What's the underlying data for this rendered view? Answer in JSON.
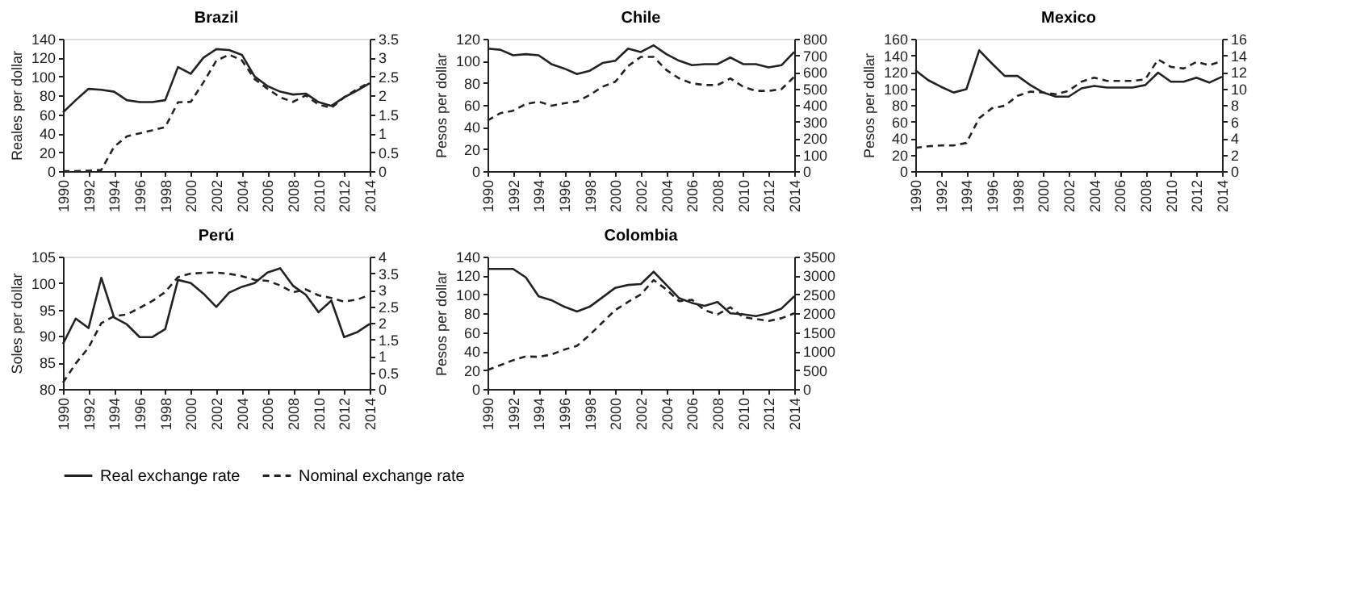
{
  "chart_data": [
    {
      "type": "line",
      "title": "Brazil",
      "ylabel": "Reales per dollar",
      "x": [
        1990,
        1991,
        1992,
        1993,
        1994,
        1995,
        1996,
        1997,
        1998,
        1999,
        2000,
        2001,
        2002,
        2003,
        2004,
        2005,
        2006,
        2007,
        2008,
        2009,
        2010,
        2011,
        2012,
        2013,
        2014
      ],
      "xlim": [
        1990,
        2014
      ],
      "xticks": [
        1990,
        1992,
        1994,
        1996,
        1998,
        2000,
        2002,
        2004,
        2006,
        2008,
        2010,
        2012,
        2014
      ],
      "ylim": [
        0,
        140
      ],
      "yticks": [
        0,
        20,
        40,
        60,
        80,
        100,
        120,
        140
      ],
      "y2lim": [
        0,
        3.5
      ],
      "y2ticks": [
        0,
        0.5,
        1,
        1.5,
        2,
        2.5,
        3,
        3.5
      ],
      "series": [
        {
          "color": "#222222",
          "line_style": "solid",
          "values": [
            62,
            75,
            87,
            86,
            84,
            75,
            73,
            73,
            75,
            110,
            103,
            120,
            129,
            128,
            123,
            100,
            90,
            84,
            81,
            82,
            73,
            69,
            78,
            85,
            93
          ]
        },
        {
          "color": "#222222",
          "line_style": "dashed",
          "axis": "y2",
          "values": [
            0,
            0,
            0.01,
            0.03,
            0.64,
            0.92,
            1.0,
            1.08,
            1.16,
            1.82,
            1.83,
            2.35,
            2.92,
            3.08,
            2.93,
            2.43,
            2.18,
            1.95,
            1.83,
            2.0,
            1.76,
            1.67,
            1.95,
            2.16,
            2.35
          ]
        }
      ]
    },
    {
      "type": "line",
      "title": "Chile",
      "ylabel": "Pesos per dollar",
      "x": [
        1990,
        1991,
        1992,
        1993,
        1994,
        1995,
        1996,
        1997,
        1998,
        1999,
        2000,
        2001,
        2002,
        2003,
        2004,
        2005,
        2006,
        2007,
        2008,
        2009,
        2010,
        2011,
        2012,
        2013,
        2014
      ],
      "xlim": [
        1990,
        2014
      ],
      "xticks": [
        1990,
        1992,
        1994,
        1996,
        1998,
        2000,
        2002,
        2004,
        2006,
        2008,
        2010,
        2012,
        2014
      ],
      "ylim": [
        0,
        120
      ],
      "yticks": [
        0,
        20,
        40,
        60,
        80,
        100,
        120
      ],
      "y2lim": [
        0,
        800
      ],
      "y2ticks": [
        0,
        100,
        200,
        300,
        400,
        500,
        600,
        700,
        800
      ],
      "series": [
        {
          "color": "#222222",
          "line_style": "solid",
          "values": [
            111,
            110,
            105,
            106,
            105,
            97,
            93,
            88,
            91,
            98,
            100,
            111,
            108,
            114,
            106,
            100,
            96,
            97,
            97,
            103,
            97,
            97,
            94,
            96,
            108
          ]
        },
        {
          "color": "#222222",
          "line_style": "dashed",
          "axis": "y2",
          "values": [
            305,
            350,
            365,
            405,
            420,
            395,
            410,
            420,
            460,
            510,
            540,
            635,
            690,
            690,
            610,
            560,
            530,
            520,
            520,
            560,
            510,
            485,
            485,
            495,
            570
          ]
        }
      ]
    },
    {
      "type": "line",
      "title": "Mexico",
      "ylabel": "Pesos per dollar",
      "x": [
        1990,
        1991,
        1992,
        1993,
        1994,
        1995,
        1996,
        1997,
        1998,
        1999,
        2000,
        2001,
        2002,
        2003,
        2004,
        2005,
        2006,
        2007,
        2008,
        2009,
        2010,
        2011,
        2012,
        2013,
        2014
      ],
      "xlim": [
        1990,
        2014
      ],
      "xticks": [
        1990,
        1992,
        1994,
        1996,
        1998,
        2000,
        2002,
        2004,
        2006,
        2008,
        2010,
        2012,
        2014
      ],
      "ylim": [
        0,
        160
      ],
      "yticks": [
        0,
        20,
        40,
        60,
        80,
        100,
        120,
        140,
        160
      ],
      "y2lim": [
        0,
        16
      ],
      "y2ticks": [
        0,
        2,
        4,
        6,
        8,
        10,
        12,
        14,
        16
      ],
      "series": [
        {
          "color": "#222222",
          "line_style": "solid",
          "values": [
            122,
            110,
            102,
            95,
            99,
            146,
            130,
            115,
            115,
            104,
            95,
            90,
            90,
            100,
            103,
            101,
            101,
            101,
            104,
            119,
            108,
            108,
            113,
            107,
            114
          ]
        },
        {
          "color": "#222222",
          "line_style": "dashed",
          "axis": "y2",
          "values": [
            2.8,
            3.0,
            3.1,
            3.1,
            3.4,
            6.4,
            7.6,
            7.9,
            9.1,
            9.6,
            9.5,
            9.3,
            9.7,
            10.8,
            11.3,
            10.9,
            10.9,
            10.9,
            11.1,
            13.5,
            12.6,
            12.4,
            13.2,
            12.8,
            13.3
          ]
        }
      ]
    },
    {
      "type": "line",
      "title": "Perú",
      "ylabel": "Soles per dollar",
      "x": [
        1990,
        1991,
        1992,
        1993,
        1994,
        1995,
        1996,
        1997,
        1998,
        1999,
        2000,
        2001,
        2002,
        2003,
        2004,
        2005,
        2006,
        2007,
        2008,
        2009,
        2010,
        2011,
        2012,
        2013,
        2014
      ],
      "xlim": [
        1990,
        2014
      ],
      "xticks": [
        1990,
        1992,
        1994,
        1996,
        1998,
        2000,
        2002,
        2004,
        2006,
        2008,
        2010,
        2012,
        2014
      ],
      "ylim": [
        80,
        105
      ],
      "yticks": [
        80,
        85,
        90,
        95,
        100,
        105
      ],
      "y2lim": [
        0,
        4
      ],
      "y2ticks": [
        0,
        0.5,
        1,
        1.5,
        2,
        2.5,
        3,
        3.5,
        4
      ],
      "series": [
        {
          "color": "#222222",
          "line_style": "solid",
          "values": [
            88.5,
            93.3,
            91.5,
            101,
            93.5,
            92.2,
            89.8,
            89.8,
            91.3,
            100.6,
            100,
            98,
            95.5,
            98.2,
            99.3,
            100,
            102,
            102.8,
            99.5,
            97.8,
            94.5,
            96.7,
            89.8,
            90.7,
            92.3
          ]
        },
        {
          "color": "#222222",
          "line_style": "dashed",
          "axis": "y2",
          "values": [
            0.19,
            0.77,
            1.25,
            1.99,
            2.2,
            2.25,
            2.45,
            2.66,
            2.93,
            3.38,
            3.49,
            3.51,
            3.52,
            3.48,
            3.41,
            3.3,
            3.27,
            3.13,
            2.92,
            3.01,
            2.83,
            2.75,
            2.64,
            2.7,
            2.84
          ]
        }
      ]
    },
    {
      "type": "line",
      "title": "Colombia",
      "ylabel": "Pesos per dollar",
      "legend": "bottom",
      "x": [
        1990,
        1991,
        1992,
        1993,
        1994,
        1995,
        1996,
        1997,
        1998,
        1999,
        2000,
        2001,
        2002,
        2003,
        2004,
        2005,
        2006,
        2007,
        2008,
        2009,
        2010,
        2011,
        2012,
        2013,
        2014
      ],
      "xlim": [
        1990,
        2014
      ],
      "xticks": [
        1990,
        1992,
        1994,
        1996,
        1998,
        2000,
        2002,
        2004,
        2006,
        2008,
        2010,
        2012,
        2014
      ],
      "ylim": [
        0,
        140
      ],
      "yticks": [
        0,
        20,
        40,
        60,
        80,
        100,
        120,
        140
      ],
      "y2lim": [
        0,
        3500
      ],
      "y2ticks": [
        0,
        500,
        1000,
        1500,
        2000,
        2500,
        3000,
        3500
      ],
      "series": [
        {
          "name": "Real exchange rate",
          "color": "#222222",
          "line_style": "solid",
          "values": [
            127,
            127,
            127,
            118,
            98,
            94,
            87,
            82,
            87,
            97,
            107,
            110,
            111,
            124,
            110,
            96,
            91,
            88,
            92,
            80,
            79,
            77,
            80,
            85,
            98
          ]
        },
        {
          "name": "Nominal exchange rate",
          "color": "#222222",
          "line_style": "dashed",
          "axis": "y2",
          "values": [
            500,
            630,
            760,
            860,
            850,
            910,
            1040,
            1140,
            1430,
            1760,
            2090,
            2300,
            2500,
            2880,
            2630,
            2320,
            2360,
            2080,
            1970,
            2160,
            1900,
            1850,
            1800,
            1870,
            2000
          ]
        }
      ]
    }
  ]
}
